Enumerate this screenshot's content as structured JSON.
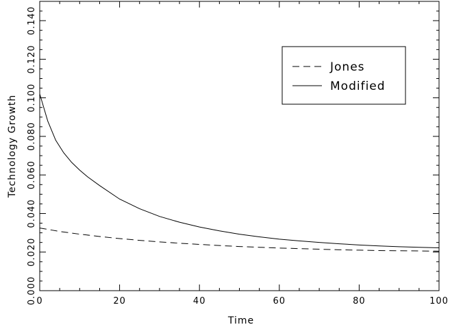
{
  "chart_data": {
    "type": "line",
    "xlabel": "Time",
    "ylabel": "Technology Growth",
    "xlim": [
      0,
      100
    ],
    "ylim": [
      0,
      0.15
    ],
    "xticks": [
      0,
      20,
      40,
      60,
      80,
      100
    ],
    "xtick_labels": [
      "0",
      "20",
      "40",
      "60",
      "80",
      "100"
    ],
    "yticks": [
      0,
      0.02,
      0.04,
      0.06,
      0.08,
      0.1,
      0.12,
      0.14
    ],
    "ytick_labels": [
      "0.000",
      "0.020",
      "0.040",
      "0.060",
      "0.080",
      "0.100",
      "0.120",
      "0.140"
    ],
    "grid": false,
    "legend_position": "top-right",
    "series": [
      {
        "name": "Jones",
        "style": "dashed",
        "color": "#000000",
        "x": [
          0,
          5,
          10,
          15,
          20,
          25,
          30,
          35,
          40,
          45,
          50,
          55,
          60,
          65,
          70,
          75,
          80,
          85,
          90,
          95,
          100
        ],
        "values": [
          0.0325,
          0.0307,
          0.0293,
          0.0281,
          0.027,
          0.0261,
          0.0253,
          0.0246,
          0.024,
          0.0234,
          0.0229,
          0.0225,
          0.0221,
          0.0218,
          0.0215,
          0.0212,
          0.021,
          0.0208,
          0.0207,
          0.0206,
          0.0205
        ]
      },
      {
        "name": "Modified",
        "style": "solid",
        "color": "#000000",
        "x": [
          0,
          2,
          4,
          6,
          8,
          10,
          12,
          15,
          20,
          25,
          30,
          35,
          40,
          45,
          50,
          55,
          60,
          65,
          70,
          75,
          80,
          85,
          90,
          95,
          100
        ],
        "values": [
          0.102,
          0.088,
          0.078,
          0.0715,
          0.0665,
          0.0625,
          0.059,
          0.0545,
          0.0475,
          0.0425,
          0.0385,
          0.0355,
          0.033,
          0.031,
          0.0293,
          0.0279,
          0.0267,
          0.0258,
          0.025,
          0.0243,
          0.0237,
          0.0232,
          0.0228,
          0.0225,
          0.0222
        ]
      }
    ]
  }
}
